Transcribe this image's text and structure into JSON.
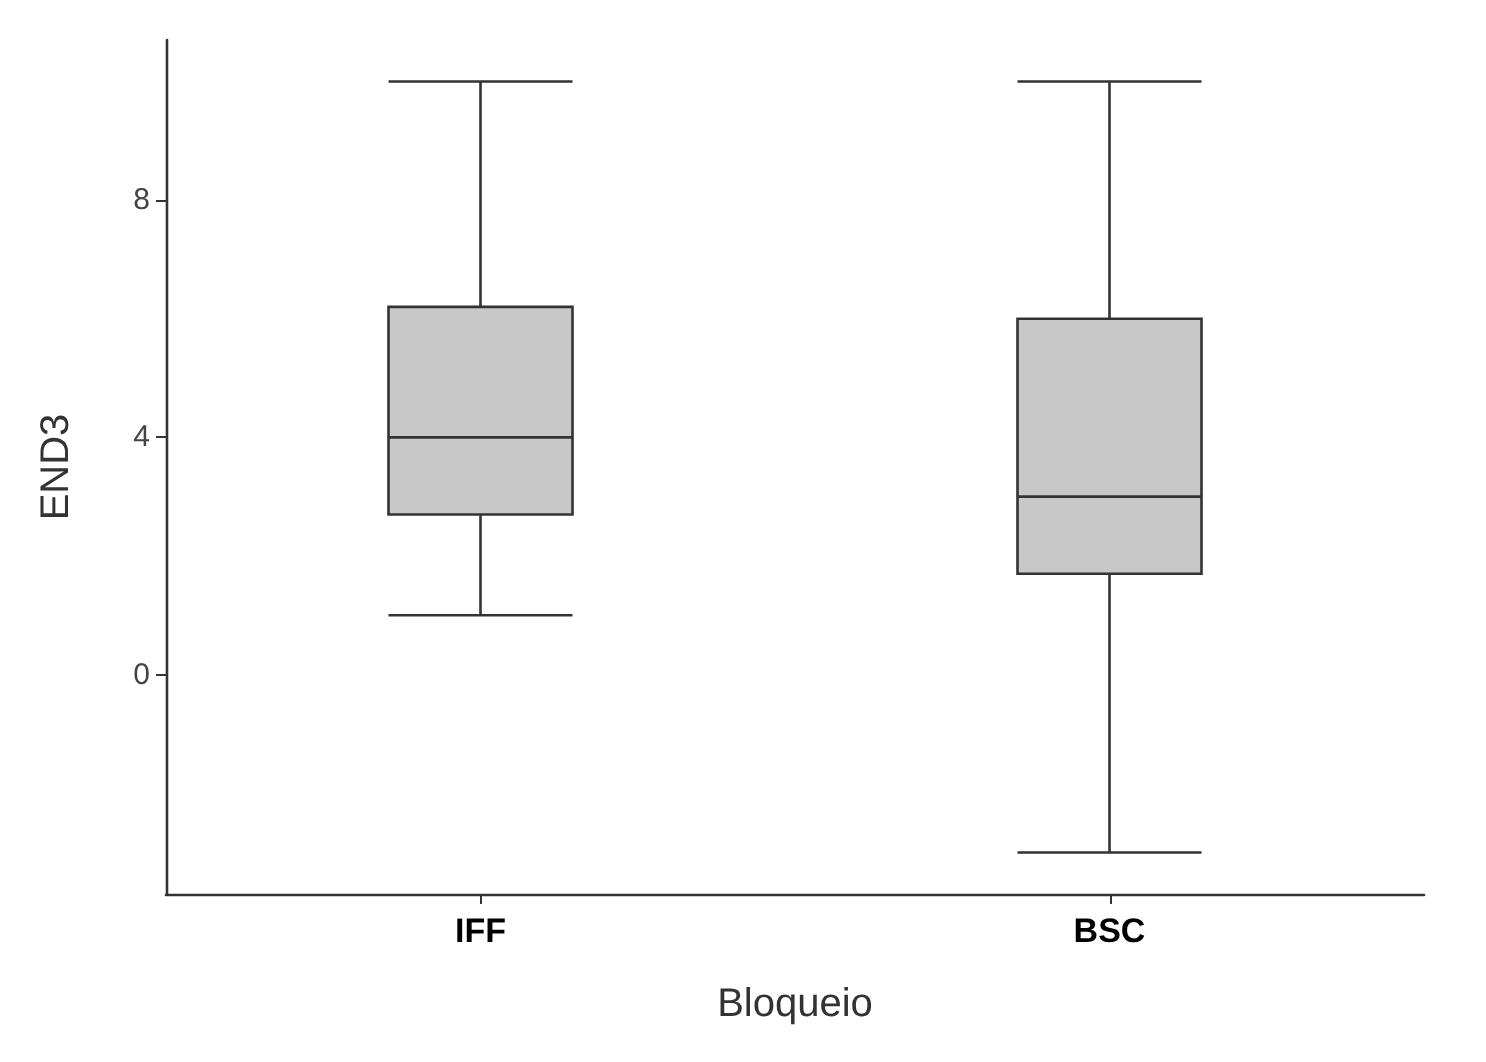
{
  "chart_data": {
    "type": "box",
    "xlabel": "Bloqueio",
    "ylabel": "END3",
    "categories": [
      "IFF",
      "BSC"
    ],
    "boxes": [
      {
        "low": 1,
        "q1": 2.7,
        "median": 4,
        "q3": 6.2,
        "high": 10
      },
      {
        "low": -3,
        "q1": 1.7,
        "median": 3,
        "q3": 6,
        "high": 10
      }
    ],
    "color": "#c8c8c8",
    "ylim": [
      -3.7,
      10.7
    ],
    "yticks": [
      0,
      4,
      8
    ],
    "grid": false
  }
}
